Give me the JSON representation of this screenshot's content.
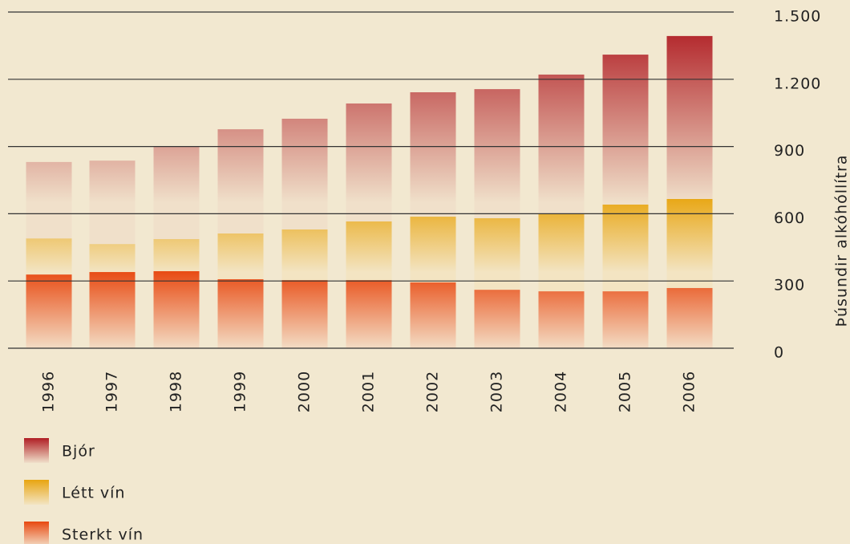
{
  "chart_data": {
    "type": "stacked_bar",
    "y_label": "Þúsundir alkóhóllítra",
    "categories": [
      "1996",
      "1997",
      "1998",
      "1999",
      "2000",
      "2001",
      "2002",
      "2003",
      "2004",
      "2005",
      "2006"
    ],
    "series": [
      {
        "name": "Sterkt vín",
        "color": "#e84810",
        "values": [
          329,
          340,
          344,
          308,
          304,
          304,
          294,
          261,
          254,
          254,
          269
        ]
      },
      {
        "name": "Létt vín",
        "color": "#e8a510",
        "values": [
          161,
          125,
          143,
          204,
          226,
          262,
          293,
          319,
          347,
          387,
          397
        ]
      },
      {
        "name": "Bjór",
        "color": "#b01e24",
        "values": [
          341,
          372,
          415,
          465,
          494,
          526,
          555,
          576,
          620,
          669,
          727
        ]
      }
    ],
    "ylim": [
      0,
      1500
    ],
    "yticks": [
      0,
      300,
      600,
      900,
      {
        "value": 1200,
        "label": "1.200"
      },
      {
        "value": 1500,
        "label": "1.500"
      }
    ],
    "grid": true
  }
}
